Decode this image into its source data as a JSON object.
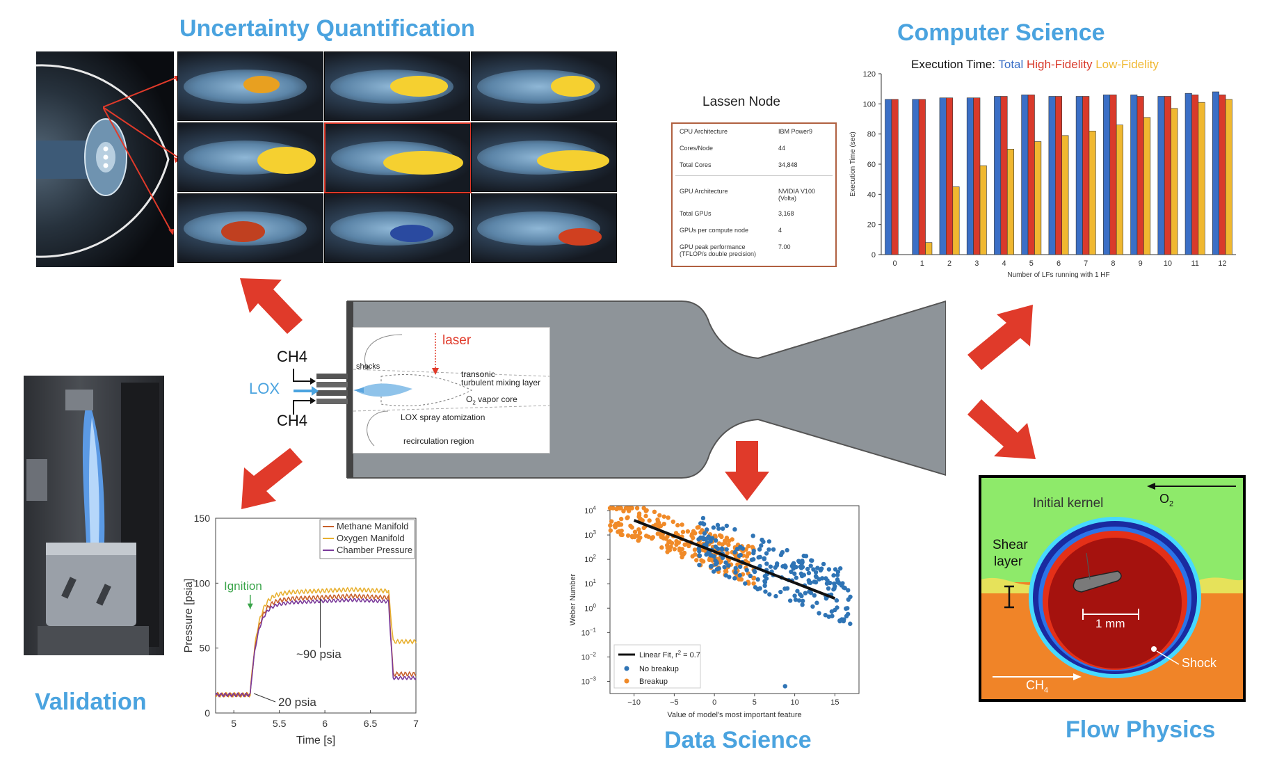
{
  "sections": {
    "uq": "Uncertainty Quantification",
    "cs": "Computer Science",
    "validation": "Validation",
    "data_science": "Data Science",
    "flow_physics": "Flow Physics"
  },
  "colors": {
    "title_blue": "#4aa3df",
    "arrow_red": "#e03a2a",
    "nozzle_gray": "#8e9499",
    "total_blue": "#3b6fc6",
    "hf_red": "#d93a2b",
    "lf_orange": "#f0b830"
  },
  "injector": {
    "ch4_top": "CH4",
    "lox": "LOX",
    "ch4_bottom": "CH4",
    "laser": "laser",
    "shocks": "shocks",
    "mixing_1": "transonic",
    "mixing_2": "turbulent mixing layer",
    "vapor_core": "O",
    "vapor_core_sub": "2",
    "vapor_core_rest": " vapor core",
    "atomization": "LOX spray atomization",
    "recirculation": "recirculation region"
  },
  "lassen": {
    "title": "Lassen Node",
    "rows": [
      {
        "k": "CPU Architecture",
        "v": "IBM Power9"
      },
      {
        "k": "Cores/Node",
        "v": "44"
      },
      {
        "k": "Total Cores",
        "v": "34,848"
      },
      {
        "k": "GPU Architecture",
        "v": "NVIDIA V100 (Volta)"
      },
      {
        "k": "Total GPUs",
        "v": "3,168"
      },
      {
        "k": "GPUs per compute node",
        "v": "4"
      },
      {
        "k": "GPU peak performance (TFLOP/s double precision)",
        "v": "7.00"
      }
    ]
  },
  "flow_physics": {
    "o2": "O",
    "o2_sub": "2",
    "initial_kernel": "Initial kernel",
    "shear": "Shear",
    "layer": "layer",
    "scale": "1 mm",
    "shock": "Shock",
    "ch4": "CH",
    "ch4_sub": "4"
  },
  "chart_data": [
    {
      "id": "execution_time",
      "type": "bar",
      "title_prefix": "Execution Time:",
      "xlabel": "Number of LFs running with 1 HF",
      "ylabel": "Execution Time (sec)",
      "ylim": [
        0,
        120
      ],
      "yticks": [
        0,
        20,
        40,
        60,
        80,
        100,
        120
      ],
      "categories": [
        "0",
        "1",
        "2",
        "3",
        "4",
        "5",
        "6",
        "7",
        "8",
        "9",
        "10",
        "11",
        "12"
      ],
      "series": [
        {
          "name": "Total",
          "color": "#3b6fc6",
          "values": [
            103,
            103,
            104,
            104,
            105,
            106,
            105,
            105,
            106,
            106,
            105,
            107,
            108
          ]
        },
        {
          "name": "High-Fidelity",
          "color": "#d93a2b",
          "values": [
            103,
            103,
            104,
            104,
            105,
            106,
            105,
            105,
            106,
            105,
            105,
            106,
            106
          ]
        },
        {
          "name": "Low-Fidelity",
          "color": "#f0b830",
          "values": [
            null,
            8,
            45,
            59,
            70,
            75,
            79,
            82,
            86,
            91,
            97,
            101,
            103
          ]
        }
      ],
      "grid": false
    },
    {
      "id": "pressure",
      "type": "line",
      "xlabel": "Time [s]",
      "ylabel": "Pressure [psia]",
      "xlim": [
        4.8,
        7
      ],
      "ylim": [
        0,
        150
      ],
      "xticks": [
        5,
        5.5,
        6,
        6.5,
        7
      ],
      "yticks": [
        0,
        50,
        100,
        150
      ],
      "series": [
        {
          "name": "Methane Manifold",
          "color": "#c8602a"
        },
        {
          "name": "Oxygen Manifold",
          "color": "#e8b030"
        },
        {
          "name": "Chamber Pressure",
          "color": "#7a3a9a"
        }
      ],
      "annotations": {
        "ignition": "Ignition",
        "p90": "~90 psia",
        "p20": "20 psia"
      }
    },
    {
      "id": "weber_scatter",
      "type": "scatter",
      "xlabel": "Value of model's most important feature",
      "ylabel": "Weber Number",
      "xlim": [
        -13,
        18
      ],
      "xticks": [
        -10,
        -5,
        0,
        5,
        10,
        15
      ],
      "yticks_exp": [
        -3,
        -2,
        -1,
        0,
        1,
        2,
        3,
        4
      ],
      "y_scale": "log",
      "legend": {
        "fit": "Linear Fit, r",
        "fit_sup": "2",
        "fit_rest": " = 0.7",
        "no_breakup": "No breakup",
        "breakup": "Breakup"
      },
      "fit": {
        "x": [
          -10,
          15
        ],
        "log10_y": [
          3.6,
          0.4
        ]
      },
      "series": [
        {
          "name": "No breakup",
          "color": "#2f74b5"
        },
        {
          "name": "Breakup",
          "color": "#f08a28"
        }
      ]
    }
  ]
}
